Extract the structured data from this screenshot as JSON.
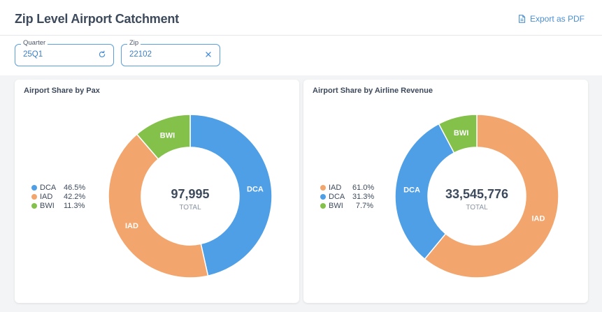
{
  "header": {
    "title": "Zip Level Airport Catchment",
    "export_label": "Export as PDF",
    "export_icon": "pdf-file-icon"
  },
  "filters": {
    "quarter": {
      "label": "Quarter",
      "value": "25Q1",
      "icon": "refresh-icon"
    },
    "zip": {
      "label": "Zip",
      "value": "22102",
      "icon": "clear-icon"
    }
  },
  "colors": {
    "DCA": "#4f9fe6",
    "IAD": "#f2a66e",
    "BWI": "#83c14b",
    "accent": "#4a8fd4"
  },
  "chart_data": [
    {
      "type": "pie",
      "title": "Airport Share by Pax",
      "total_value": "97,995",
      "total_label": "TOTAL",
      "slices": [
        {
          "name": "DCA",
          "pct_label": "46.5%",
          "value": 46.5
        },
        {
          "name": "IAD",
          "pct_label": "42.2%",
          "value": 42.2
        },
        {
          "name": "BWI",
          "pct_label": "11.3%",
          "value": 11.3
        }
      ]
    },
    {
      "type": "pie",
      "title": "Airport Share by Airline Revenue",
      "total_value": "33,545,776",
      "total_label": "TOTAL",
      "slices": [
        {
          "name": "IAD",
          "pct_label": "61.0%",
          "value": 61.0
        },
        {
          "name": "DCA",
          "pct_label": "31.3%",
          "value": 31.3
        },
        {
          "name": "BWI",
          "pct_label": "7.7%",
          "value": 7.7
        }
      ]
    }
  ]
}
